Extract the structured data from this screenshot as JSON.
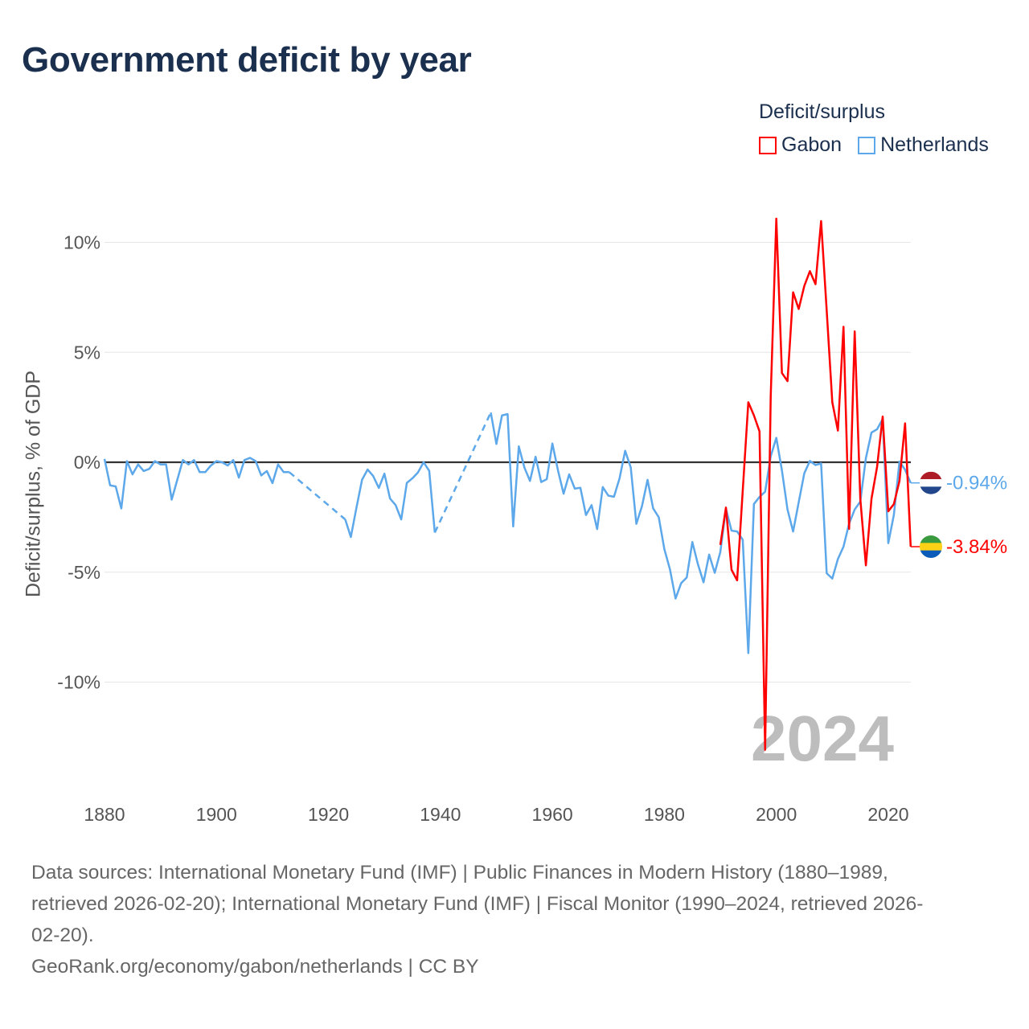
{
  "title": "Government deficit by year",
  "legend": {
    "title": "Deficit/surplus",
    "items": [
      {
        "label": "Gabon",
        "color": "#ff0000"
      },
      {
        "label": "Netherlands",
        "color": "#5ca8ea"
      }
    ]
  },
  "year_watermark": "2024",
  "footer": {
    "lines": [
      "Data sources: International Monetary Fund (IMF) | Public Finances in Modern History (1880–1989,",
      "retrieved 2026-02-20); International Monetary Fund (IMF) | Fiscal Monitor (1990–2024, retrieved 2026-",
      "02-20).",
      "GeoRank.org/economy/gabon/netherlands | CC BY"
    ]
  },
  "chart_data": {
    "type": "line",
    "title": "Government deficit by year",
    "xlabel": "",
    "ylabel": "Deficit/surplus, % of GDP",
    "xlim": [
      1880,
      2024
    ],
    "ylim": [
      -13.5,
      12
    ],
    "x_ticks": [
      1880,
      1900,
      1920,
      1940,
      1960,
      1980,
      2000,
      2020
    ],
    "x_tick_labels": [
      "1880",
      "1900",
      "1920",
      "1940",
      "1960",
      "1980",
      "2000",
      "2020"
    ],
    "y_ticks": [
      10,
      5,
      0,
      -5,
      -10
    ],
    "y_tick_labels": [
      "10%",
      "5%",
      "0%",
      "-5%",
      "-10%"
    ],
    "grid": true,
    "legend_position": "top-right",
    "series": [
      {
        "name": "Netherlands",
        "color": "#5ca8ea",
        "x_start": 1880,
        "end_label": "-0.94%",
        "flag": [
          "#ae1c28",
          "#ffffff",
          "#21468b"
        ],
        "values": [
          0.15,
          -1.05,
          -1.1,
          -2.1,
          0.05,
          -0.55,
          -0.1,
          -0.4,
          -0.3,
          0.05,
          -0.1,
          -0.1,
          -1.7,
          -0.8,
          0.1,
          -0.1,
          0.1,
          -0.45,
          -0.45,
          -0.15,
          0.05,
          0,
          -0.15,
          0.1,
          -0.7,
          0.1,
          0.2,
          0.05,
          -0.6,
          -0.4,
          -0.95,
          -0.1,
          -0.45,
          -0.45,
          null,
          null,
          null,
          null,
          null,
          null,
          null,
          null,
          null,
          -2.6,
          -3.4,
          -2.07,
          -0.8,
          -0.33,
          -0.63,
          -1.17,
          -0.52,
          -1.65,
          -1.95,
          -2.6,
          -0.94,
          -0.73,
          -0.46,
          0,
          -0.39,
          -3.2,
          null,
          null,
          null,
          null,
          null,
          null,
          null,
          null,
          null,
          2.26,
          0.83,
          2.13,
          2.19,
          -2.92,
          0.72,
          -0.24,
          -0.85,
          0.25,
          -0.9,
          -0.77,
          0.85,
          -0.37,
          -1.43,
          -0.55,
          -1.2,
          -1.16,
          -2.4,
          -1.95,
          -3.04,
          -1.13,
          -1.52,
          -1.57,
          -0.73,
          0.52,
          -0.24,
          -2.8,
          -2.0,
          -0.8,
          -2.1,
          -2.5,
          -3.95,
          -4.87,
          -6.2,
          -5.5,
          -5.24,
          -3.63,
          -4.64,
          -5.46,
          -4.2,
          -5.03,
          -4.08,
          -2.11,
          -3.11,
          -3.15,
          -3.52,
          -8.68,
          -1.9,
          -1.58,
          -1.34,
          0.27,
          1.11,
          -0.37,
          -2.15,
          -3.15,
          -1.82,
          -0.5,
          0.06,
          -0.13,
          -0.05,
          -5.05,
          -5.29,
          -4.4,
          -3.84,
          -2.79,
          -2.15,
          -1.79,
          0.19,
          1.35,
          1.5,
          1.97,
          -3.68,
          -2.39,
          0.03,
          -0.34,
          -0.94
        ]
      },
      {
        "name": "Gabon",
        "color": "#ff0000",
        "x_start": 1990,
        "end_label": "-3.84%",
        "flag": [
          "#3a9a3f",
          "#fcd116",
          "#0a5cb8"
        ],
        "values": [
          -3.76,
          -2.06,
          -4.89,
          -5.37,
          -1.3,
          2.73,
          2.13,
          1.4,
          -13.08,
          3.0,
          11.08,
          4.06,
          3.69,
          7.73,
          6.97,
          8.02,
          8.69,
          8.1,
          10.97,
          6.9,
          2.73,
          1.44,
          6.16,
          -3.03,
          5.95,
          -1.66,
          -4.69,
          -1.66,
          -0.21,
          2.08,
          -2.23,
          -1.9,
          -0.85,
          1.77,
          -3.84
        ]
      }
    ]
  }
}
